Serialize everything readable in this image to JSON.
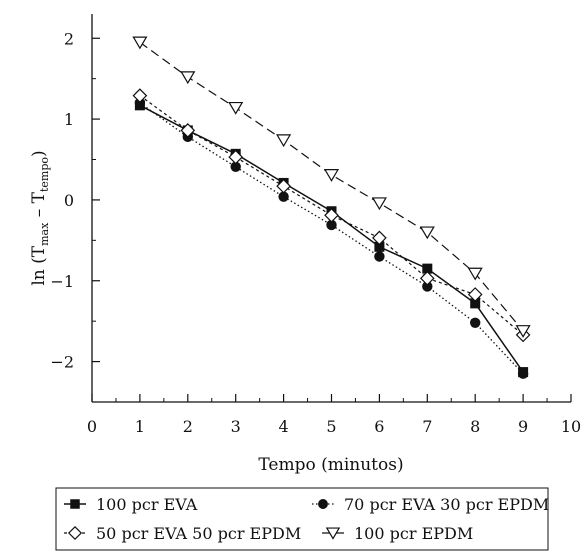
{
  "chart_data": {
    "type": "line",
    "xlabel": "Tempo (minutos)",
    "ylabel": {
      "prefix": "ln (T",
      "sub1": "max",
      "middle": " – T",
      "sub2": "tempo",
      "suffix": ")"
    },
    "xlim": [
      0,
      10
    ],
    "ylim": [
      -2.5,
      2.3
    ],
    "x_ticks": [
      "0",
      "1",
      "2",
      "3",
      "4",
      "5",
      "6",
      "7",
      "8",
      "9",
      "10"
    ],
    "y_ticks": [
      "−2",
      "−1",
      "0",
      "1",
      "2"
    ],
    "grid": false,
    "legend_position": "bottom",
    "x": [
      1,
      2,
      3,
      4,
      5,
      6,
      7,
      8,
      9
    ],
    "series": [
      {
        "name": "100 pcr EVA",
        "values": [
          1.17,
          0.86,
          0.57,
          0.21,
          -0.14,
          -0.58,
          -0.85,
          -1.28,
          -2.13
        ],
        "marker": "square-filled",
        "line_style": "solid"
      },
      {
        "name": "70 pcr EVA 30 pcr EPDM",
        "values": [
          1.2,
          0.78,
          0.41,
          0.04,
          -0.31,
          -0.7,
          -1.07,
          -1.52,
          -2.15
        ],
        "marker": "circle-filled",
        "line_style": "dotted"
      },
      {
        "name": "50 pcr EVA 50 pcr EPDM",
        "values": [
          1.29,
          0.86,
          0.53,
          0.17,
          -0.19,
          -0.47,
          -0.97,
          -1.17,
          -1.67
        ],
        "marker": "diamond-open",
        "line_style": "short-dash"
      },
      {
        "name": "100 pcr EPDM",
        "values": [
          1.95,
          1.52,
          1.14,
          0.74,
          0.31,
          -0.04,
          -0.4,
          -0.91,
          -1.62
        ],
        "marker": "triangle-down-open",
        "line_style": "long-dash"
      }
    ]
  }
}
